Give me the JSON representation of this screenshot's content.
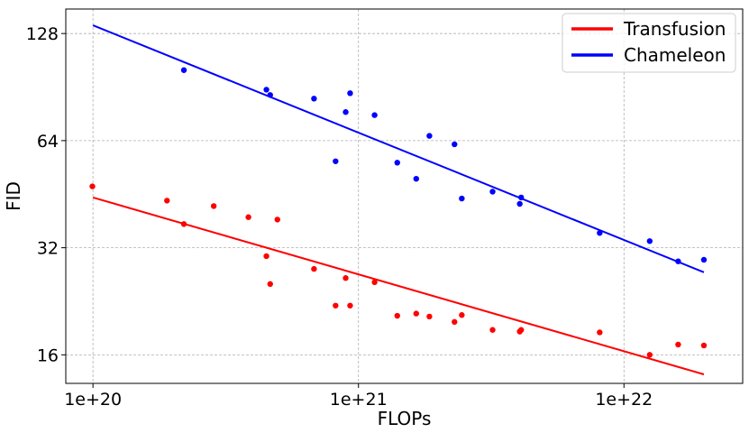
{
  "chart_data": {
    "type": "scatter",
    "title": "",
    "xlabel": "FLOPs",
    "ylabel": "FID",
    "x_scale": "log",
    "y_scale": "log2",
    "xlim": [
      7.9e+19,
      2.8e+22
    ],
    "ylim": [
      13.3,
      150
    ],
    "x_ticks": [
      1e+20,
      1e+21,
      1e+22
    ],
    "x_tick_labels": [
      "1e+20",
      "1e+21",
      "1e+22"
    ],
    "y_ticks": [
      16,
      32,
      64,
      128
    ],
    "y_tick_labels": [
      "16",
      "32",
      "64",
      "128"
    ],
    "grid": true,
    "legend_position": "top-right",
    "series": [
      {
        "name": "Transfusion",
        "color": "#ff0000",
        "points": [
          {
            "x": 9.95e+19,
            "y": 47.6
          },
          {
            "x": 1.9e+20,
            "y": 43.4
          },
          {
            "x": 2.2e+20,
            "y": 37.3
          },
          {
            "x": 2.85e+20,
            "y": 41.9
          },
          {
            "x": 3.85e+20,
            "y": 39.0
          },
          {
            "x": 4.5e+20,
            "y": 30.3
          },
          {
            "x": 4.65e+20,
            "y": 25.3
          },
          {
            "x": 4.95e+20,
            "y": 38.4
          },
          {
            "x": 6.8e+20,
            "y": 27.9
          },
          {
            "x": 8.2e+20,
            "y": 22.0
          },
          {
            "x": 8.95e+20,
            "y": 26.3
          },
          {
            "x": 9.3e+20,
            "y": 22.0
          },
          {
            "x": 1.15e+21,
            "y": 25.6
          },
          {
            "x": 1.4e+21,
            "y": 20.6
          },
          {
            "x": 1.65e+21,
            "y": 20.9
          },
          {
            "x": 1.85e+21,
            "y": 20.5
          },
          {
            "x": 2.3e+21,
            "y": 19.8
          },
          {
            "x": 2.45e+21,
            "y": 20.7
          },
          {
            "x": 3.2e+21,
            "y": 18.8
          },
          {
            "x": 4.05e+21,
            "y": 18.6
          },
          {
            "x": 4.1e+21,
            "y": 18.8
          },
          {
            "x": 8.1e+21,
            "y": 18.5
          },
          {
            "x": 1.25e+22,
            "y": 16.0
          },
          {
            "x": 1.6e+22,
            "y": 17.1
          },
          {
            "x": 2e+22,
            "y": 17.0
          }
        ],
        "fit": [
          {
            "x": 1e+20,
            "y": 44.3
          },
          {
            "x": 2e+22,
            "y": 14.1
          }
        ]
      },
      {
        "name": "Chameleon",
        "color": "#0000ff",
        "points": [
          {
            "x": 2.2e+20,
            "y": 101
          },
          {
            "x": 4.5e+20,
            "y": 89
          },
          {
            "x": 4.65e+20,
            "y": 86
          },
          {
            "x": 6.8e+20,
            "y": 84
          },
          {
            "x": 8.2e+20,
            "y": 56
          },
          {
            "x": 8.95e+20,
            "y": 77
          },
          {
            "x": 9.3e+20,
            "y": 87
          },
          {
            "x": 1.15e+21,
            "y": 75.5
          },
          {
            "x": 1.4e+21,
            "y": 55.5
          },
          {
            "x": 1.65e+21,
            "y": 50
          },
          {
            "x": 1.85e+21,
            "y": 66
          },
          {
            "x": 2.3e+21,
            "y": 62.5
          },
          {
            "x": 2.45e+21,
            "y": 44
          },
          {
            "x": 3.2e+21,
            "y": 46
          },
          {
            "x": 4.05e+21,
            "y": 42.5
          },
          {
            "x": 4.1e+21,
            "y": 44.3
          },
          {
            "x": 8.1e+21,
            "y": 35.2
          },
          {
            "x": 1.25e+22,
            "y": 33.4
          },
          {
            "x": 1.6e+22,
            "y": 29.3
          },
          {
            "x": 2e+22,
            "y": 29.6
          }
        ],
        "fit": [
          {
            "x": 1e+20,
            "y": 135
          },
          {
            "x": 2e+22,
            "y": 27.3
          }
        ]
      }
    ]
  }
}
